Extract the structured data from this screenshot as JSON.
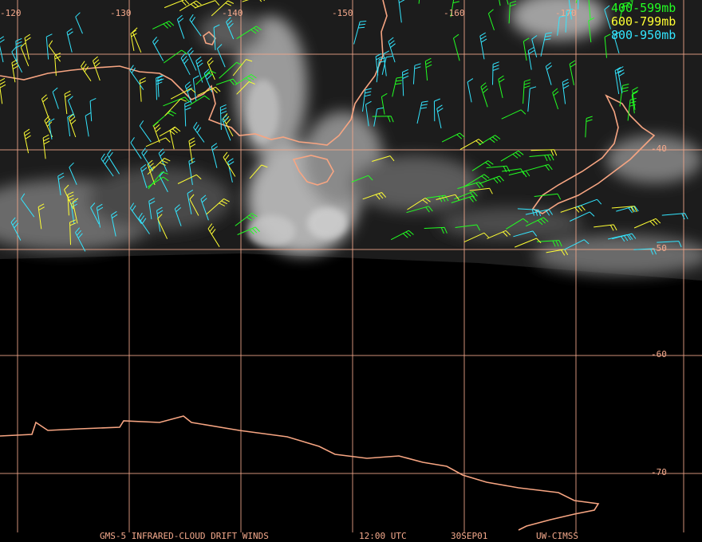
{
  "map": {
    "longitude_labels": [
      "-120",
      "-130",
      "-140",
      "-150",
      "-160",
      "-170"
    ],
    "latitude_labels": [
      "-40",
      "-50",
      "-60",
      "-70"
    ],
    "legend": [
      "400-599mb",
      "600-799mb",
      "800-950mb"
    ],
    "footer": {
      "product": "GMS-5 INFRARED-CLOUD DRIFT WINDS",
      "time": "12:00 UTC",
      "date": "30SEP01",
      "source": "UW-CIMSS"
    }
  }
}
